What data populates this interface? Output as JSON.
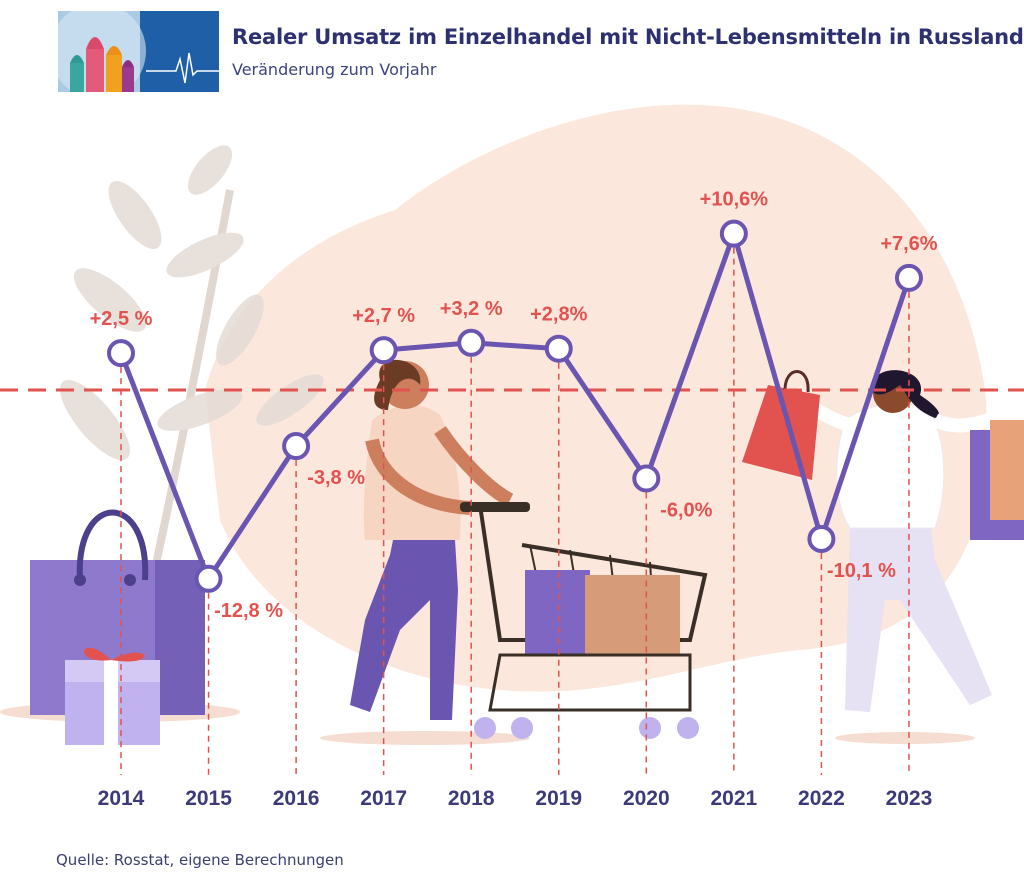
{
  "header": {
    "title": "Realer Umsatz im Einzelhandel mit Nicht-Lebensmitteln in Russland",
    "subtitle": "Veränderung zum Vorjahr"
  },
  "source": "Quelle: Rosstat, eigene Berechnungen",
  "colors": {
    "line": "#6a55b0",
    "label": "#e2524f",
    "zero_line": "#e2524f",
    "year": "#3d3a78",
    "blob": "#fbe7dc"
  },
  "chart_data": {
    "type": "line",
    "title": "Realer Umsatz im Einzelhandel mit Nicht-Lebensmitteln in Russland",
    "subtitle": "Veränderung zum Vorjahr",
    "x": [
      "2014",
      "2015",
      "2016",
      "2017",
      "2018",
      "2019",
      "2020",
      "2021",
      "2022",
      "2023"
    ],
    "series": [
      {
        "values": [
          2.5,
          -12.8,
          -3.8,
          2.7,
          3.2,
          2.8,
          -6.0,
          10.6,
          -10.1,
          7.6
        ],
        "labels": [
          "+2,5 %",
          "-12,8 %",
          "-3,8 %",
          "+2,7 %",
          "+3,2 %",
          "+2,8%",
          "-6,0%",
          "+10,6%",
          "-10,1 %",
          "+7,6%"
        ]
      }
    ],
    "reference_line": 0,
    "grid": false,
    "legend": "none"
  }
}
